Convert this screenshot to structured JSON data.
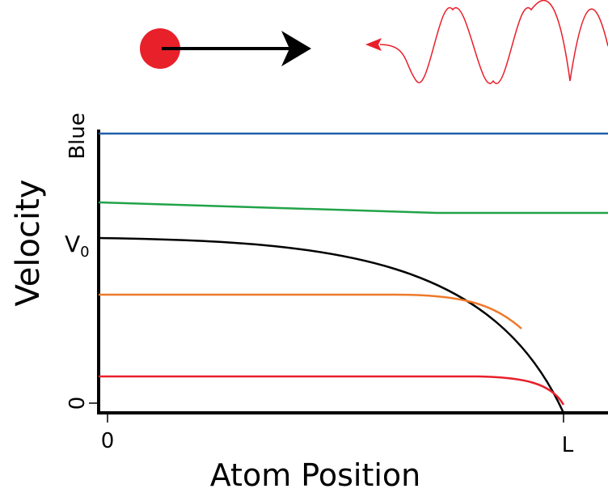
{
  "axes": {
    "y_title": "Velocity",
    "x_title": "Atom Position",
    "y_labels": {
      "top": "Blue",
      "v0": "V",
      "v0_subscript": "0",
      "zero": "0"
    },
    "x_labels": {
      "zero": "0",
      "end": "L"
    }
  }
}
